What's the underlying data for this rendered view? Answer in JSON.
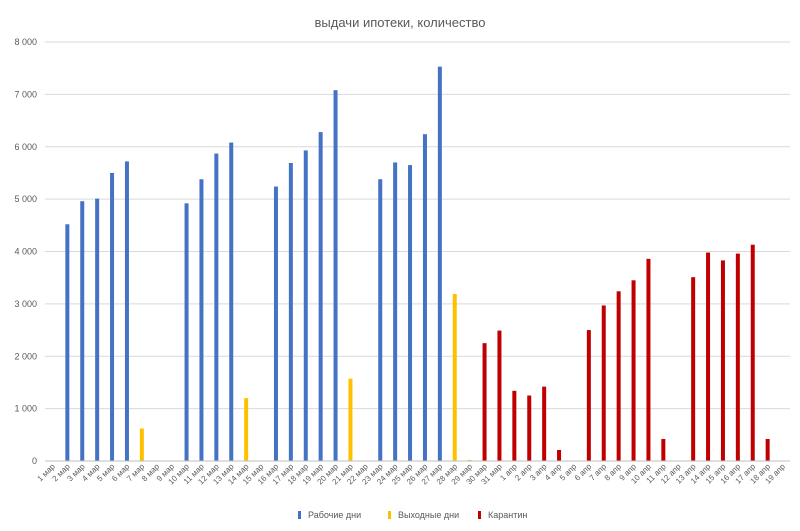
{
  "chart_data": {
    "type": "bar",
    "title": "выдачи ипотеки, количество",
    "xlabel": "",
    "ylabel": "",
    "ylim": [
      0,
      8000
    ],
    "yticks": [
      0,
      1000,
      2000,
      3000,
      4000,
      5000,
      6000,
      7000,
      8000
    ],
    "ytick_labels": [
      "0",
      "1 000",
      "2 000",
      "3 000",
      "4 000",
      "5 000",
      "6 000",
      "7 000",
      "8 000"
    ],
    "grid": true,
    "legend_position": "bottom",
    "categories": [
      "1 мар",
      "2 мар",
      "3 мар",
      "4 мар",
      "5 мар",
      "6 мар",
      "7 мар",
      "8 мар",
      "9 мар",
      "10 мар",
      "11 мар",
      "12 мар",
      "13 мар",
      "14 мар",
      "15 мар",
      "16 мар",
      "17 мар",
      "18 мар",
      "19 мар",
      "20 мар",
      "21 мар",
      "22 мар",
      "23 мар",
      "24 мар",
      "25 мар",
      "26 мар",
      "27 мар",
      "28 мар",
      "29 мар",
      "30 мар",
      "31 мар",
      "1 апр",
      "2 апр",
      "3 апр",
      "4 апр",
      "5 апр",
      "6 апр",
      "7 апр",
      "8 апр",
      "9 апр",
      "10 апр",
      "11 апр",
      "12 апр",
      "13 апр",
      "14 апр",
      "15 апр",
      "16 апр",
      "17 апр",
      "18 апр",
      "19 апр"
    ],
    "series": [
      {
        "name": "Рабочие дни",
        "color": "#4472C4",
        "values": [
          0,
          4520,
          4960,
          5010,
          5500,
          5720,
          0,
          0,
          0,
          4920,
          5380,
          5870,
          6080,
          0,
          0,
          5240,
          5690,
          5930,
          6280,
          7080,
          0,
          0,
          5380,
          5700,
          5650,
          6240,
          7530,
          0,
          0,
          0,
          0,
          0,
          0,
          0,
          0,
          0,
          0,
          0,
          0,
          0,
          0,
          0,
          0,
          0,
          0,
          0,
          0,
          0,
          0,
          0
        ]
      },
      {
        "name": "Выходные дни",
        "color": "#FFC000",
        "values": [
          0,
          0,
          0,
          0,
          0,
          0,
          620,
          0,
          0,
          0,
          0,
          0,
          0,
          1200,
          0,
          0,
          0,
          0,
          0,
          0,
          1570,
          0,
          0,
          0,
          0,
          0,
          0,
          3190,
          20,
          0,
          0,
          0,
          0,
          0,
          0,
          0,
          0,
          0,
          0,
          0,
          0,
          0,
          0,
          0,
          0,
          0,
          0,
          0,
          0,
          0
        ]
      },
      {
        "name": "Карантин",
        "color": "#C00000",
        "values": [
          0,
          0,
          0,
          0,
          0,
          0,
          0,
          0,
          0,
          0,
          0,
          0,
          0,
          0,
          0,
          0,
          0,
          0,
          0,
          0,
          0,
          0,
          0,
          0,
          0,
          0,
          0,
          0,
          0,
          2250,
          2490,
          1340,
          1250,
          1420,
          210,
          0,
          2500,
          2970,
          3240,
          3450,
          3860,
          420,
          0,
          3510,
          3980,
          3830,
          3960,
          4130,
          420,
          0
        ]
      }
    ]
  }
}
